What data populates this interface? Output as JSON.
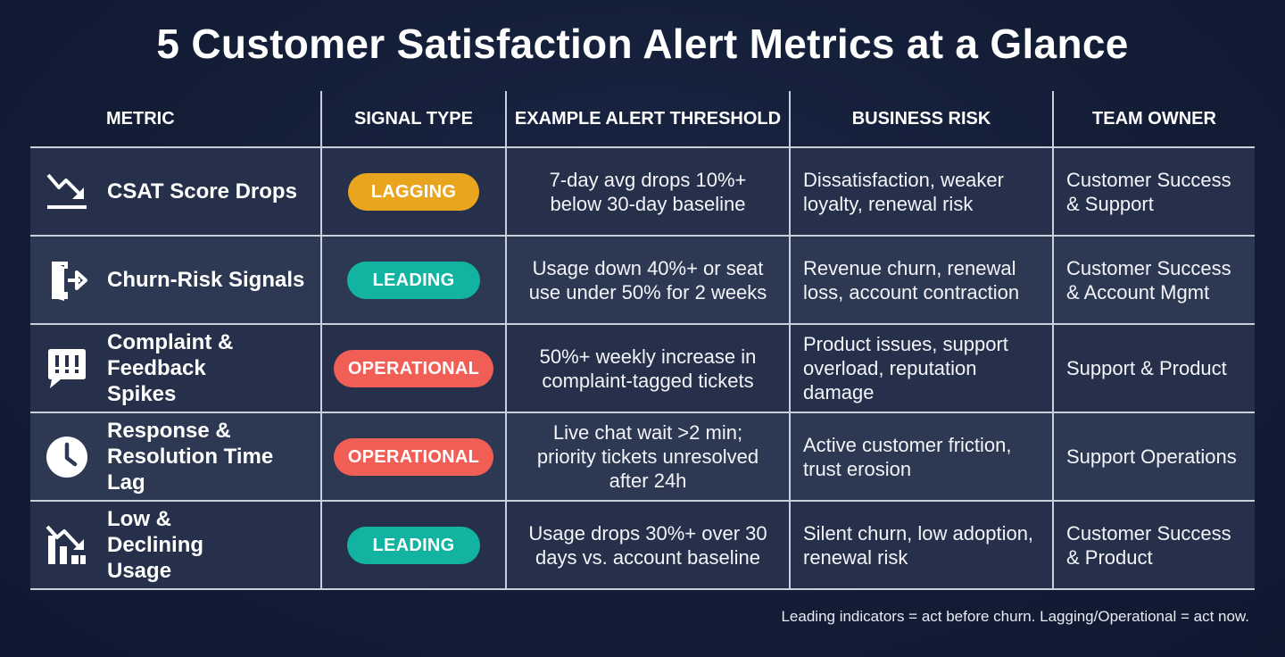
{
  "title": "5 Customer Satisfaction Alert Metrics at a Glance",
  "headers": {
    "metric": "METRIC",
    "signal_type": "SIGNAL TYPE",
    "threshold": "EXAMPLE ALERT THRESHOLD",
    "risk": "BUSINESS RISK",
    "owner": "TEAM OWNER"
  },
  "badge_colors": {
    "lagging": "#e9a51e",
    "leading": "#12b3a0",
    "operational": "#f05e56"
  },
  "rows": [
    {
      "icon": "trending-down-icon",
      "metric": "CSAT Score Drops",
      "signal": "LAGGING",
      "threshold": "7-day avg drops 10%+ below 30-day baseline",
      "risk": "Dissatisfaction, weaker loyalty, renewal risk",
      "owner": "Customer Success & Support"
    },
    {
      "icon": "exit-door-icon",
      "metric": "Churn-Risk Signals",
      "signal": "LEADING",
      "threshold": "Usage down 40%+ or seat use under 50% for 2 weeks",
      "risk": "Revenue churn, renewal loss, account contraction",
      "owner": "Customer Success & Account Mgmt"
    },
    {
      "icon": "alert-chat-icon",
      "metric": "Complaint & Feedback Spikes",
      "signal": "OPERATIONAL",
      "threshold": "50%+ weekly increase in complaint-tagged tickets",
      "risk": "Product issues, support overload, reputation damage",
      "owner": "Support & Product"
    },
    {
      "icon": "clock-icon",
      "metric": "Response & Resolution Time Lag",
      "signal": "OPERATIONAL",
      "threshold": "Live chat wait >2 min; priority tickets unresolved after 24h",
      "risk": "Active customer friction, trust erosion",
      "owner": "Support Operations"
    },
    {
      "icon": "declining-bars-icon",
      "metric": "Low & Declining Usage",
      "signal": "LEADING",
      "threshold": "Usage drops 30%+ over 30 days vs. account baseline",
      "risk": "Silent churn, low adoption, renewal risk",
      "owner": "Customer Success & Product"
    }
  ],
  "footnote": "Leading indicators = act before churn. Lagging/Operational = act now."
}
